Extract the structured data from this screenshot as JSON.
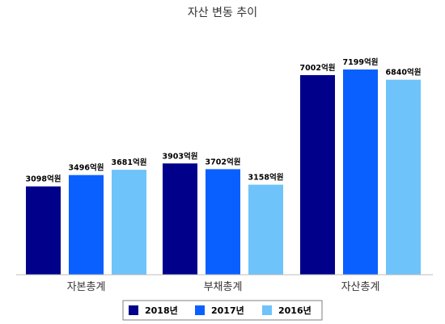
{
  "chart_data": {
    "type": "bar",
    "title": "자산 변동 추이",
    "categories": [
      "자본총계",
      "부채총계",
      "자산총계"
    ],
    "unit_suffix": "억원",
    "series": [
      {
        "name": "2018년",
        "color": "#00008B",
        "values": [
          3098,
          3903,
          7002
        ]
      },
      {
        "name": "2017년",
        "color": "#0A60FF",
        "values": [
          3496,
          3702,
          7199
        ]
      },
      {
        "name": "2016년",
        "color": "#6EC3FA",
        "values": [
          3681,
          3158,
          6840
        ]
      }
    ],
    "ylim": [
      0,
      8100
    ],
    "grid": false,
    "legend_position": "bottom"
  }
}
